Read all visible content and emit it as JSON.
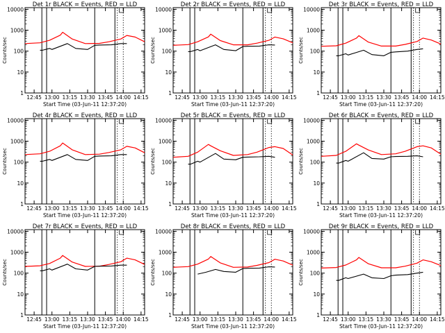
{
  "chart_data": [
    {
      "type": "line",
      "title": "Det 1r BLACK = Events, RED = LLD",
      "xlabel": "Start Time (03-Jun-11 12:37:20)",
      "ylabel": "Counts/sec",
      "x_ticks": [
        "12:45",
        "13:00",
        "13:15",
        "13:30",
        "13:45",
        "14:00",
        "14:15"
      ],
      "y_ticks": [
        "1",
        "10",
        "100",
        "1000",
        "10000"
      ],
      "xlim": [
        "12:37:20",
        "14:18:00"
      ],
      "ylim": [
        1,
        12000
      ],
      "y_scale": "log",
      "vertical_lines": {
        "solid": [
          "12:51:30",
          "12:55:30",
          "13:36:00",
          "13:53:00"
        ],
        "dotted": [
          "13:55:00",
          "14:00:00"
        ]
      },
      "colors": {
        "red": "#ff0000",
        "black": "#000000"
      },
      "series": [
        {
          "name": "RED",
          "x": [
            "12:37:20",
            "12:50:00",
            "12:58:00",
            "13:07:00",
            "13:09:00",
            "13:17:00",
            "13:28:00",
            "13:40:00",
            "13:48:00",
            "13:58:00",
            "14:03:00",
            "14:10:00",
            "14:18:00"
          ],
          "values": [
            230,
            250,
            330,
            580,
            800,
            380,
            230,
            235,
            280,
            380,
            560,
            470,
            280
          ]
        },
        {
          "name": "BLACK",
          "x": [
            "12:50:00",
            "12:52:00",
            "12:58:00",
            "13:00:00",
            "13:13:00",
            "13:20:00",
            "13:30:00",
            "13:36:00",
            "13:40:00",
            "13:50:00",
            "13:58:00",
            "14:03:00"
          ],
          "values": [
            110,
            110,
            135,
            120,
            230,
            135,
            120,
            190,
            195,
            200,
            230,
            230
          ]
        }
      ]
    },
    {
      "type": "line",
      "title": "Det 2r BLACK = Events, RED = LLD",
      "xlabel": "Start Time (03-Jun-11 12:37:20)",
      "ylabel": "Counts/sec",
      "x_ticks": [
        "12:45",
        "13:00",
        "13:15",
        "13:30",
        "13:45",
        "14:00",
        "14:15"
      ],
      "y_ticks": [
        "1",
        "10",
        "100",
        "1000",
        "10000"
      ],
      "xlim": [
        "12:37:20",
        "14:18:00"
      ],
      "ylim": [
        1,
        12000
      ],
      "y_scale": "log",
      "vertical_lines": {
        "solid": [
          "12:51:30",
          "12:55:30",
          "13:36:00",
          "13:53:00"
        ],
        "dotted": [
          "13:55:00",
          "14:00:00"
        ]
      },
      "colors": {
        "red": "#ff0000",
        "black": "#000000"
      },
      "series": [
        {
          "name": "RED",
          "x": [
            "12:37:20",
            "12:50:00",
            "12:58:00",
            "13:07:00",
            "13:09:00",
            "13:17:00",
            "13:28:00",
            "13:40:00",
            "13:48:00",
            "13:58:00",
            "14:03:00",
            "14:10:00",
            "14:18:00"
          ],
          "values": [
            190,
            205,
            280,
            480,
            650,
            320,
            200,
            200,
            240,
            330,
            470,
            390,
            250
          ]
        },
        {
          "name": "BLACK",
          "x": [
            "12:50:00",
            "12:52:00",
            "12:58:00",
            "13:00:00",
            "13:13:00",
            "13:20:00",
            "13:30:00",
            "13:36:00",
            "13:40:00",
            "13:50:00",
            "13:58:00",
            "14:03:00"
          ],
          "values": [
            95,
            95,
            120,
            105,
            200,
            120,
            105,
            165,
            170,
            175,
            200,
            195
          ]
        }
      ]
    },
    {
      "type": "line",
      "title": "Det 3r BLACK = Events, RED = LLD",
      "xlabel": "Start Time (03-Jun-11 12:37:20)",
      "ylabel": "Counts/sec",
      "x_ticks": [
        "12:45",
        "13:00",
        "13:15",
        "13:30",
        "13:45",
        "14:00",
        "14:15"
      ],
      "y_ticks": [
        "1",
        "10",
        "100",
        "1000",
        "10000"
      ],
      "xlim": [
        "12:37:20",
        "14:18:00"
      ],
      "ylim": [
        1,
        12000
      ],
      "y_scale": "log",
      "vertical_lines": {
        "solid": [
          "12:51:30",
          "12:55:30",
          "13:36:00",
          "13:53:00"
        ],
        "dotted": [
          "13:55:00",
          "14:00:00"
        ]
      },
      "colors": {
        "red": "#ff0000",
        "black": "#000000"
      },
      "series": [
        {
          "name": "RED",
          "x": [
            "12:37:20",
            "12:50:00",
            "12:58:00",
            "13:07:00",
            "13:09:00",
            "13:17:00",
            "13:28:00",
            "13:40:00",
            "13:48:00",
            "13:58:00",
            "14:03:00",
            "14:10:00",
            "14:18:00"
          ],
          "values": [
            170,
            180,
            240,
            420,
            550,
            270,
            175,
            175,
            210,
            290,
            420,
            340,
            220
          ]
        },
        {
          "name": "BLACK",
          "x": [
            "12:50:00",
            "12:52:00",
            "12:58:00",
            "13:00:00",
            "13:13:00",
            "13:20:00",
            "13:30:00",
            "13:36:00",
            "13:40:00",
            "13:50:00",
            "13:58:00",
            "14:03:00"
          ],
          "values": [
            60,
            60,
            75,
            65,
            110,
            68,
            60,
            88,
            92,
            100,
            120,
            130
          ]
        }
      ]
    },
    {
      "type": "line",
      "title": "Det 4r BLACK = Events, RED = LLD",
      "xlabel": "Start Time (03-Jun-11 12:37:20)",
      "ylabel": "Counts/sec",
      "x_ticks": [
        "12:45",
        "13:00",
        "13:15",
        "13:30",
        "13:45",
        "14:00",
        "14:15"
      ],
      "y_ticks": [
        "1",
        "10",
        "100",
        "1000",
        "10000"
      ],
      "xlim": [
        "12:37:20",
        "14:18:00"
      ],
      "ylim": [
        1,
        12000
      ],
      "y_scale": "log",
      "vertical_lines": {
        "solid": [
          "12:51:30",
          "12:55:30",
          "13:36:00",
          "13:53:00"
        ],
        "dotted": [
          "13:55:00",
          "14:00:00"
        ]
      },
      "colors": {
        "red": "#ff0000",
        "black": "#000000"
      },
      "series": [
        {
          "name": "RED",
          "x": [
            "12:37:20",
            "12:50:00",
            "12:58:00",
            "13:07:00",
            "13:09:00",
            "13:17:00",
            "13:28:00",
            "13:40:00",
            "13:48:00",
            "13:58:00",
            "14:03:00",
            "14:10:00",
            "14:18:00"
          ],
          "values": [
            230,
            250,
            330,
            600,
            820,
            390,
            230,
            240,
            290,
            390,
            570,
            480,
            280
          ]
        },
        {
          "name": "BLACK",
          "x": [
            "12:50:00",
            "12:52:00",
            "12:58:00",
            "13:00:00",
            "13:13:00",
            "13:20:00",
            "13:30:00",
            "13:36:00",
            "13:40:00",
            "13:50:00",
            "13:58:00",
            "14:03:00"
          ],
          "values": [
            110,
            110,
            135,
            120,
            230,
            135,
            120,
            190,
            195,
            200,
            230,
            230
          ]
        }
      ]
    },
    {
      "type": "line",
      "title": "Det 5r BLACK = Events, RED = LLD",
      "xlabel": "Start Time (03-Jun-11 12:37:20)",
      "ylabel": "Counts/sec",
      "x_ticks": [
        "12:45",
        "13:00",
        "13:15",
        "13:30",
        "13:45",
        "14:00",
        "14:15"
      ],
      "y_ticks": [
        "1",
        "10",
        "100",
        "1000",
        "10000"
      ],
      "xlim": [
        "12:37:20",
        "14:18:00"
      ],
      "ylim": [
        1,
        12000
      ],
      "y_scale": "log",
      "vertical_lines": {
        "solid": [
          "12:51:30",
          "12:55:30",
          "13:36:00",
          "13:53:00"
        ],
        "dotted": [
          "13:55:00",
          "14:00:00"
        ]
      },
      "colors": {
        "red": "#ff0000",
        "black": "#000000"
      },
      "series": [
        {
          "name": "RED",
          "x": [
            "12:37:20",
            "12:50:00",
            "12:58:00",
            "13:07:00",
            "13:09:00",
            "13:17:00",
            "13:28:00",
            "13:40:00",
            "13:48:00",
            "13:58:00",
            "14:03:00",
            "14:10:00",
            "14:18:00"
          ],
          "values": [
            170,
            190,
            300,
            700,
            600,
            350,
            210,
            230,
            300,
            500,
            550,
            450,
            220
          ]
        },
        {
          "name": "BLACK",
          "x": [
            "12:50:00",
            "12:52:00",
            "12:58:00",
            "13:00:00",
            "13:13:00",
            "13:20:00",
            "13:30:00",
            "13:36:00",
            "13:40:00",
            "13:50:00",
            "13:58:00",
            "14:03:00"
          ],
          "values": [
            80,
            80,
            110,
            100,
            260,
            140,
            130,
            170,
            175,
            180,
            190,
            170
          ]
        }
      ]
    },
    {
      "type": "line",
      "title": "Det 6r BLACK = Events, RED = LLD",
      "xlabel": "Start Time (03-Jun-11 12:37:20)",
      "ylabel": "Counts/sec",
      "x_ticks": [
        "12:45",
        "13:00",
        "13:15",
        "13:30",
        "13:45",
        "14:00",
        "14:15"
      ],
      "y_ticks": [
        "1",
        "10",
        "100",
        "1000",
        "10000"
      ],
      "xlim": [
        "12:37:20",
        "14:18:00"
      ],
      "ylim": [
        1,
        12000
      ],
      "y_scale": "log",
      "vertical_lines": {
        "solid": [
          "12:51:30",
          "12:55:30",
          "13:36:00",
          "13:53:00"
        ],
        "dotted": [
          "13:55:00",
          "14:00:00"
        ]
      },
      "colors": {
        "red": "#ff0000",
        "black": "#000000"
      },
      "series": [
        {
          "name": "RED",
          "x": [
            "12:37:20",
            "12:50:00",
            "12:58:00",
            "13:07:00",
            "13:09:00",
            "13:17:00",
            "13:28:00",
            "13:40:00",
            "13:48:00",
            "13:58:00",
            "14:03:00",
            "14:10:00",
            "14:18:00"
          ],
          "values": [
            190,
            210,
            330,
            750,
            650,
            380,
            230,
            250,
            330,
            550,
            600,
            480,
            240
          ]
        },
        {
          "name": "BLACK",
          "x": [
            "12:50:00",
            "12:52:00",
            "12:58:00",
            "13:00:00",
            "13:13:00",
            "13:20:00",
            "13:30:00",
            "13:36:00",
            "13:40:00",
            "13:50:00",
            "13:58:00",
            "14:03:00"
          ],
          "values": [
            90,
            90,
            120,
            110,
            280,
            150,
            140,
            180,
            185,
            190,
            200,
            180
          ]
        }
      ]
    },
    {
      "type": "line",
      "title": "Det 7r BLACK = Events, RED = LLD",
      "xlabel": "Start Time (03-Jun-11 12:37:20)",
      "ylabel": "Counts/sec",
      "x_ticks": [
        "12:45",
        "13:00",
        "13:15",
        "13:30",
        "13:45",
        "14:00",
        "14:15"
      ],
      "y_ticks": [
        "1",
        "10",
        "100",
        "1000",
        "10000"
      ],
      "xlim": [
        "12:37:20",
        "14:18:00"
      ],
      "ylim": [
        1,
        12000
      ],
      "y_scale": "log",
      "vertical_lines": {
        "solid": [
          "12:51:30",
          "12:55:30",
          "13:36:00",
          "13:53:00"
        ],
        "dotted": [
          "13:55:00",
          "14:00:00"
        ]
      },
      "colors": {
        "red": "#ff0000",
        "black": "#000000"
      },
      "series": [
        {
          "name": "RED",
          "x": [
            "12:37:20",
            "12:50:00",
            "12:58:00",
            "13:07:00",
            "13:09:00",
            "13:17:00",
            "13:28:00",
            "13:40:00",
            "13:48:00",
            "13:58:00",
            "14:03:00",
            "14:10:00",
            "14:18:00"
          ],
          "values": [
            210,
            225,
            290,
            520,
            700,
            340,
            210,
            215,
            260,
            350,
            520,
            430,
            260
          ]
        },
        {
          "name": "BLACK",
          "x": [
            "12:50:00",
            "12:52:00",
            "12:58:00",
            "13:00:00",
            "13:13:00",
            "13:20:00",
            "13:30:00",
            "13:36:00",
            "13:40:00",
            "13:50:00",
            "13:58:00",
            "14:03:00"
          ],
          "values": [
            130,
            130,
            160,
            140,
            270,
            160,
            140,
            210,
            215,
            220,
            240,
            240
          ]
        }
      ]
    },
    {
      "type": "line",
      "title": "Det 8r BLACK = Events, RED = LLD",
      "xlabel": "Start Time (03-Jun-11 12:37:20)",
      "ylabel": "Counts/sec",
      "x_ticks": [
        "12:45",
        "13:00",
        "13:15",
        "13:30",
        "13:45",
        "14:00",
        "14:15"
      ],
      "y_ticks": [
        "1",
        "10",
        "100",
        "1000",
        "10000"
      ],
      "xlim": [
        "12:37:20",
        "14:18:00"
      ],
      "ylim": [
        1,
        12000
      ],
      "y_scale": "log",
      "vertical_lines": {
        "solid": [
          "12:51:30",
          "12:55:30",
          "13:36:00",
          "13:53:00"
        ],
        "dotted": [
          "13:55:00",
          "14:00:00"
        ]
      },
      "colors": {
        "red": "#ff0000",
        "black": "#000000"
      },
      "series": [
        {
          "name": "RED",
          "x": [
            "12:37:20",
            "12:50:00",
            "12:58:00",
            "13:07:00",
            "13:09:00",
            "13:17:00",
            "13:28:00",
            "13:40:00",
            "13:48:00",
            "13:58:00",
            "14:03:00",
            "14:10:00",
            "14:18:00"
          ],
          "values": [
            190,
            205,
            270,
            470,
            620,
            310,
            190,
            195,
            235,
            320,
            460,
            380,
            240
          ]
        },
        {
          "name": "BLACK",
          "x": [
            "12:58:00",
            "13:05:00",
            "13:13:00",
            "13:20:00",
            "13:30:00",
            "13:36:00",
            "13:40:00",
            "13:50:00",
            "13:58:00",
            "14:03:00"
          ],
          "values": [
            90,
            110,
            150,
            120,
            110,
            165,
            170,
            175,
            200,
            195
          ]
        }
      ]
    },
    {
      "type": "line",
      "title": "Det 9r BLACK = Events, RED = LLD",
      "xlabel": "Start Time (03-Jun-11 12:37:20)",
      "ylabel": "Counts/sec",
      "x_ticks": [
        "12:45",
        "13:00",
        "13:15",
        "13:30",
        "13:45",
        "14:00",
        "14:15"
      ],
      "y_ticks": [
        "1",
        "10",
        "100",
        "1000",
        "10000"
      ],
      "xlim": [
        "12:37:20",
        "14:18:00"
      ],
      "ylim": [
        1,
        12000
      ],
      "y_scale": "log",
      "vertical_lines": {
        "solid": [
          "12:51:30",
          "12:55:30",
          "13:36:00",
          "13:53:00"
        ],
        "dotted": [
          "13:55:00",
          "14:00:00"
        ]
      },
      "colors": {
        "red": "#ff0000",
        "black": "#000000"
      },
      "series": [
        {
          "name": "RED",
          "x": [
            "12:37:20",
            "12:50:00",
            "12:58:00",
            "13:07:00",
            "13:09:00",
            "13:17:00",
            "13:28:00",
            "13:40:00",
            "13:48:00",
            "13:58:00",
            "14:03:00",
            "14:10:00",
            "14:18:00"
          ],
          "values": [
            175,
            185,
            245,
            430,
            560,
            280,
            180,
            180,
            215,
            300,
            430,
            350,
            230
          ]
        },
        {
          "name": "BLACK",
          "x": [
            "12:50:00",
            "12:52:00",
            "12:58:00",
            "13:00:00",
            "13:13:00",
            "13:20:00",
            "13:30:00",
            "13:36:00",
            "13:40:00",
            "13:50:00",
            "13:58:00",
            "14:03:00"
          ],
          "values": [
            45,
            45,
            60,
            55,
            90,
            60,
            55,
            75,
            80,
            85,
            100,
            110
          ]
        }
      ]
    }
  ]
}
